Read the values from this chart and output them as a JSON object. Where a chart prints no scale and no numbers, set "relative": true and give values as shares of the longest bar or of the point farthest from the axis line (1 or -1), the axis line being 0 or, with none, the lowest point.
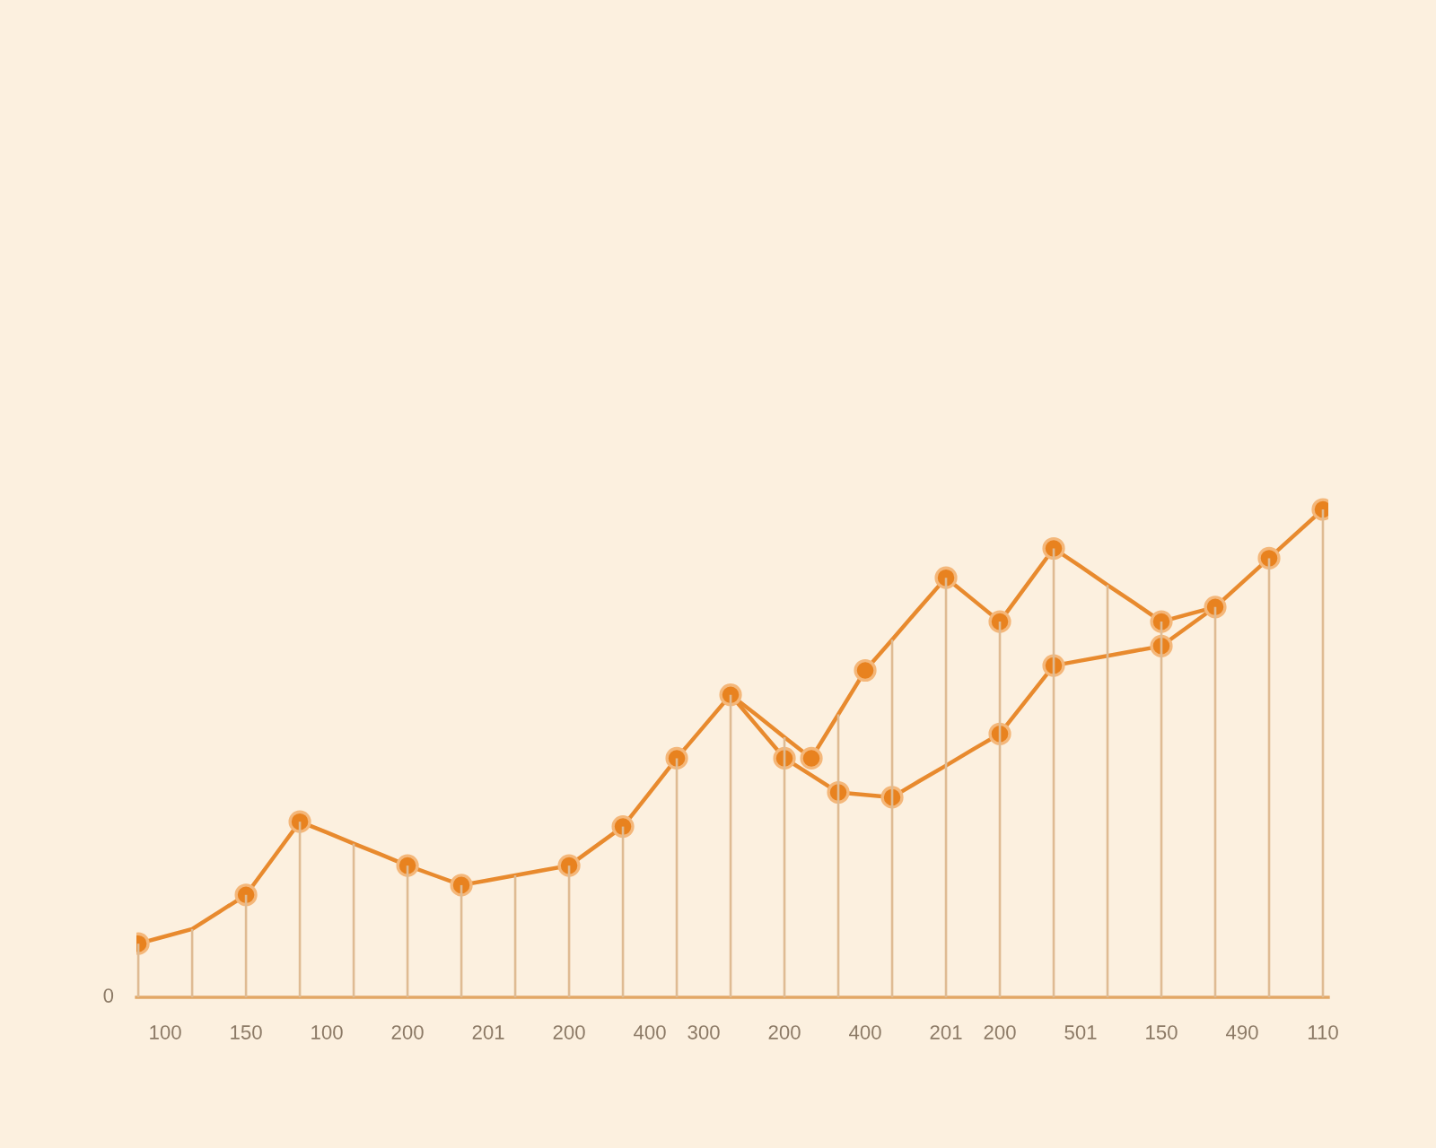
{
  "chart_data": {
    "type": "line",
    "relative": true,
    "categories": [
      null,
      "100",
      null,
      null,
      "150",
      null,
      null,
      "100",
      null,
      null,
      "200",
      null,
      null,
      "201",
      null,
      null,
      "200",
      null,
      null,
      "400",
      null,
      "300",
      null,
      null,
      "200",
      null,
      null,
      "400",
      null,
      null,
      "201",
      null,
      "200",
      null,
      null,
      "501",
      null,
      null,
      "150",
      null,
      null,
      "490",
      null,
      null,
      "110"
    ],
    "annotations": [
      "0"
    ],
    "series": [
      {
        "type": "bar",
        "color": "#dfbb93",
        "values": [
          0.11,
          null,
          0.14,
          null,
          0.21,
          null,
          0.36,
          null,
          0.315,
          null,
          0.27,
          null,
          0.23,
          null,
          0.25,
          null,
          0.27,
          null,
          0.35,
          null,
          0.49,
          null,
          0.62,
          null,
          0.533,
          null,
          0.58,
          null,
          0.733,
          null,
          0.86,
          null,
          0.77,
          null,
          0.92,
          null,
          0.845,
          null,
          0.77,
          null,
          0.8,
          null,
          0.9,
          null,
          1.0
        ]
      },
      {
        "marker": "none",
        "color": "#e88a2e",
        "values": [
          0.11,
          0.125,
          0.14,
          0.175,
          0.21,
          0.285,
          0.36,
          0.338,
          0.315,
          0.293,
          0.27,
          0.25,
          0.23,
          0.24,
          0.25,
          0.26,
          0.27,
          0.31,
          0.35,
          0.42,
          0.49,
          0.555,
          0.62,
          0.577,
          0.533,
          0.49,
          0.58,
          0.67,
          0.733,
          0.797,
          0.86,
          0.815,
          0.77,
          0.845,
          0.92,
          0.883,
          0.845,
          0.808,
          0.77,
          0.785,
          0.8,
          0.85,
          0.9,
          0.95,
          1.0
        ]
      },
      {
        "marker": "none",
        "color": "#e88a2e",
        "values": [
          null,
          null,
          null,
          null,
          null,
          null,
          null,
          null,
          null,
          null,
          null,
          null,
          null,
          null,
          null,
          null,
          null,
          null,
          null,
          null,
          null,
          null,
          0.62,
          0.555,
          0.49,
          0.455,
          0.42,
          0.415,
          0.41,
          0.443,
          0.475,
          0.508,
          0.54,
          0.61,
          0.68,
          0.69,
          0.7,
          0.71,
          0.72,
          0.76,
          0.8,
          null,
          null,
          null,
          null
        ]
      },
      {
        "type": "scatter",
        "marker": "circle",
        "color": "#e8821f",
        "values": [
          0.11,
          null,
          null,
          null,
          0.21,
          null,
          0.36,
          null,
          null,
          null,
          0.27,
          null,
          0.23,
          null,
          null,
          null,
          0.27,
          null,
          0.35,
          null,
          0.49,
          null,
          0.62,
          null,
          null,
          0.49,
          null,
          0.67,
          null,
          null,
          0.86,
          null,
          0.77,
          null,
          0.92,
          null,
          null,
          null,
          0.77,
          null,
          0.8,
          null,
          0.9,
          null,
          1.0
        ]
      },
      {
        "type": "scatter",
        "marker": "circle",
        "color": "#e8821f",
        "values": [
          null,
          null,
          null,
          null,
          null,
          null,
          null,
          null,
          null,
          null,
          null,
          null,
          null,
          null,
          null,
          null,
          null,
          null,
          null,
          null,
          null,
          null,
          null,
          null,
          0.49,
          null,
          0.42,
          null,
          0.41,
          null,
          null,
          null,
          0.54,
          null,
          0.68,
          null,
          null,
          null,
          0.72,
          null,
          null,
          null,
          null,
          null,
          null
        ]
      }
    ]
  }
}
